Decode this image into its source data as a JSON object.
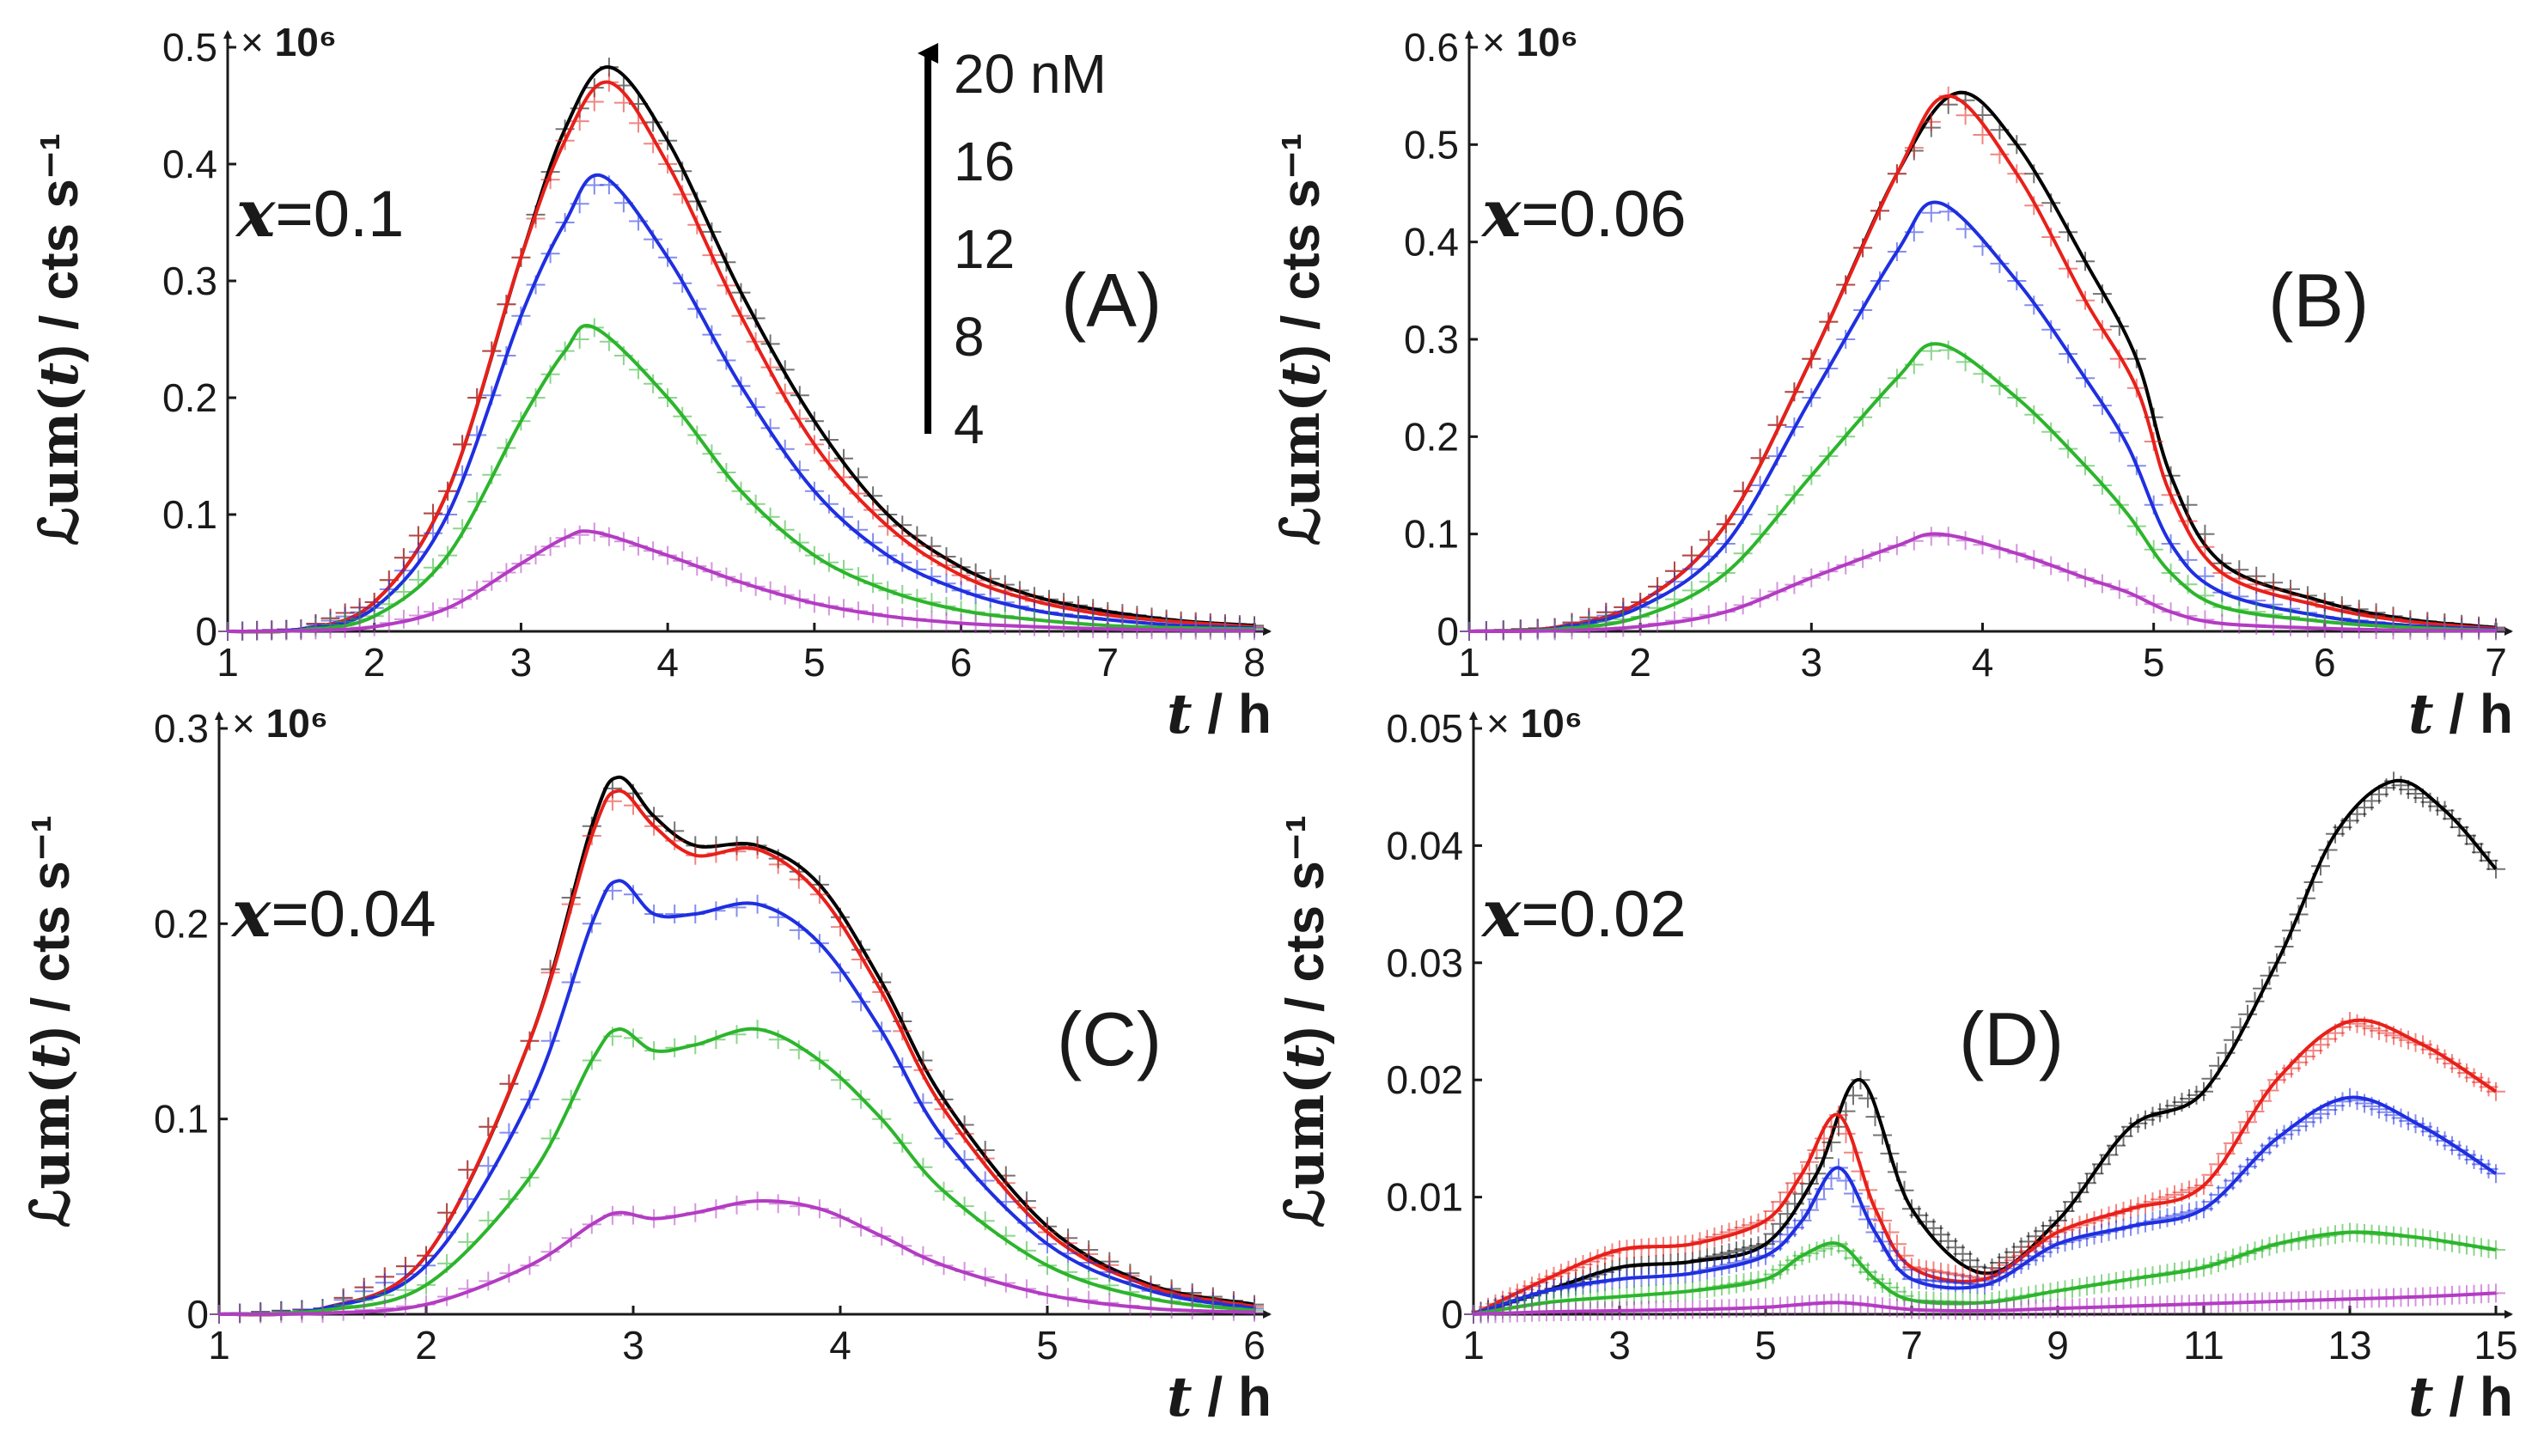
{
  "figure": {
    "colors": {
      "20 nM": "#000000",
      "16": "#e8201a",
      "12": "#1f2fe0",
      "8": "#2cb52c",
      "4": "#b33cc2"
    },
    "legend": {
      "labels": [
        "20 nM",
        "16",
        "12",
        "8",
        "4"
      ],
      "arrow": "increasing concentration"
    },
    "ylabel": {
      "prefix": "ℒum(",
      "var": "t",
      "suffix": ") / cts s⁻¹"
    },
    "xlabel": {
      "var": "t",
      "suffix": " / h"
    },
    "scale_label": {
      "prefix": "× ",
      "exp": "10⁶"
    }
  },
  "chart_data": [
    {
      "type": "line",
      "panel_letter": "(A)",
      "param_var": "x",
      "param_text": "=0.1",
      "xlim": [
        1,
        8
      ],
      "ylim": [
        0,
        0.5
      ],
      "xticks": [
        "1",
        "2",
        "3",
        "4",
        "5",
        "6",
        "7",
        "8"
      ],
      "yticks": [
        "0",
        "0.1",
        "0.2",
        "0.3",
        "0.4",
        "0.5"
      ],
      "series": [
        {
          "name": "20 nM",
          "color": "#000000",
          "x": [
            1,
            1.5,
            2,
            2.5,
            3,
            3.3,
            3.6,
            4,
            4.5,
            5,
            5.5,
            6,
            6.5,
            7,
            7.5,
            8
          ],
          "y": [
            0,
            0.002,
            0.025,
            0.12,
            0.32,
            0.43,
            0.483,
            0.42,
            0.29,
            0.18,
            0.1,
            0.055,
            0.03,
            0.017,
            0.009,
            0.005
          ]
        },
        {
          "name": "16",
          "color": "#e8201a",
          "x": [
            1,
            1.5,
            2,
            2.5,
            3,
            3.3,
            3.6,
            4,
            4.5,
            5,
            5.5,
            6,
            6.5,
            7,
            7.5,
            8
          ],
          "y": [
            0,
            0.002,
            0.025,
            0.12,
            0.32,
            0.42,
            0.47,
            0.4,
            0.27,
            0.16,
            0.09,
            0.048,
            0.026,
            0.014,
            0.008,
            0.004
          ]
        },
        {
          "name": "12",
          "color": "#1f2fe0",
          "x": [
            1,
            1.5,
            2,
            2.5,
            3,
            3.3,
            3.55,
            4,
            4.5,
            5,
            5.5,
            6,
            6.5,
            7,
            7.5,
            8
          ],
          "y": [
            0,
            0.002,
            0.02,
            0.1,
            0.27,
            0.35,
            0.39,
            0.32,
            0.21,
            0.12,
            0.065,
            0.035,
            0.018,
            0.01,
            0.005,
            0.003
          ]
        },
        {
          "name": "8",
          "color": "#2cb52c",
          "x": [
            1,
            1.5,
            2,
            2.5,
            3,
            3.3,
            3.5,
            4,
            4.5,
            5,
            5.5,
            6,
            6.5,
            7,
            7.5,
            8
          ],
          "y": [
            0,
            0.001,
            0.013,
            0.065,
            0.18,
            0.24,
            0.26,
            0.2,
            0.12,
            0.065,
            0.035,
            0.018,
            0.01,
            0.005,
            0.003,
            0.002
          ]
        },
        {
          "name": "4",
          "color": "#b33cc2",
          "x": [
            1,
            1.5,
            2,
            2.5,
            3,
            3.3,
            3.5,
            4,
            4.5,
            5,
            5.5,
            6,
            6.5,
            7,
            7.5,
            8
          ],
          "y": [
            0,
            0.0005,
            0.004,
            0.02,
            0.058,
            0.08,
            0.085,
            0.065,
            0.042,
            0.024,
            0.013,
            0.007,
            0.004,
            0.002,
            0.001,
            0.0005
          ]
        }
      ]
    },
    {
      "type": "line",
      "panel_letter": "(B)",
      "param_var": "x",
      "param_text": "=0.06",
      "xlim": [
        1,
        7
      ],
      "ylim": [
        0,
        0.6
      ],
      "xticks": [
        "1",
        "2",
        "3",
        "4",
        "5",
        "6",
        "7"
      ],
      "yticks": [
        "0",
        "0.1",
        "0.2",
        "0.3",
        "0.4",
        "0.5",
        "0.6"
      ],
      "series": [
        {
          "name": "20 nM",
          "color": "#000000",
          "x": [
            1,
            1.5,
            2,
            2.5,
            3,
            3.5,
            3.85,
            4.2,
            4.6,
            4.9,
            5.1,
            5.4,
            6,
            6.5,
            7
          ],
          "y": [
            0,
            0.004,
            0.03,
            0.11,
            0.28,
            0.47,
            0.553,
            0.5,
            0.38,
            0.28,
            0.16,
            0.07,
            0.03,
            0.012,
            0.004
          ]
        },
        {
          "name": "16",
          "color": "#e8201a",
          "x": [
            1,
            1.5,
            2,
            2.5,
            3,
            3.5,
            3.8,
            4.2,
            4.6,
            4.9,
            5.1,
            5.4,
            6,
            6.5,
            7
          ],
          "y": [
            0,
            0.004,
            0.03,
            0.11,
            0.28,
            0.47,
            0.55,
            0.47,
            0.34,
            0.25,
            0.14,
            0.06,
            0.025,
            0.01,
            0.003
          ]
        },
        {
          "name": "12",
          "color": "#1f2fe0",
          "x": [
            1,
            1.5,
            2,
            2.5,
            3,
            3.5,
            3.75,
            4.2,
            4.6,
            4.85,
            5.1,
            5.4,
            6,
            6.5,
            7
          ],
          "y": [
            0,
            0.003,
            0.025,
            0.09,
            0.24,
            0.39,
            0.44,
            0.36,
            0.26,
            0.19,
            0.09,
            0.04,
            0.015,
            0.006,
            0.002
          ]
        },
        {
          "name": "8",
          "color": "#2cb52c",
          "x": [
            1,
            1.5,
            2,
            2.5,
            3,
            3.5,
            3.75,
            4.2,
            4.6,
            4.85,
            5.1,
            5.4,
            6,
            6.5,
            7
          ],
          "y": [
            0,
            0.002,
            0.015,
            0.06,
            0.16,
            0.26,
            0.295,
            0.24,
            0.17,
            0.12,
            0.06,
            0.025,
            0.01,
            0.004,
            0.001
          ]
        },
        {
          "name": "4",
          "color": "#b33cc2",
          "x": [
            1,
            1.5,
            2,
            2.5,
            3,
            3.5,
            3.75,
            4.2,
            4.6,
            4.85,
            5.1,
            5.4,
            6,
            6.5,
            7
          ],
          "y": [
            0,
            0.0005,
            0.005,
            0.02,
            0.055,
            0.088,
            0.1,
            0.08,
            0.055,
            0.04,
            0.02,
            0.008,
            0.003,
            0.001,
            0.0005
          ]
        }
      ]
    },
    {
      "type": "line",
      "panel_letter": "(C)",
      "param_var": "x",
      "param_text": "=0.04",
      "xlim": [
        1,
        6
      ],
      "ylim": [
        0,
        0.3
      ],
      "xticks": [
        "1",
        "2",
        "3",
        "4",
        "5",
        "6"
      ],
      "yticks": [
        "0",
        "0.1",
        "0.2",
        "0.3"
      ],
      "series": [
        {
          "name": "20 nM",
          "color": "#000000",
          "x": [
            1,
            1.5,
            2,
            2.5,
            2.8,
            2.93,
            3.1,
            3.3,
            3.6,
            3.9,
            4.2,
            4.5,
            5,
            5.5,
            6
          ],
          "y": [
            0,
            0.003,
            0.03,
            0.14,
            0.25,
            0.275,
            0.255,
            0.24,
            0.24,
            0.22,
            0.17,
            0.11,
            0.045,
            0.015,
            0.005
          ]
        },
        {
          "name": "16",
          "color": "#e8201a",
          "x": [
            1,
            1.5,
            2,
            2.5,
            2.8,
            2.93,
            3.1,
            3.3,
            3.6,
            3.9,
            4.2,
            4.5,
            5,
            5.5,
            6
          ],
          "y": [
            0,
            0.003,
            0.03,
            0.14,
            0.245,
            0.268,
            0.25,
            0.235,
            0.238,
            0.215,
            0.165,
            0.105,
            0.042,
            0.014,
            0.004
          ]
        },
        {
          "name": "12",
          "color": "#1f2fe0",
          "x": [
            1,
            1.5,
            2,
            2.5,
            2.8,
            2.93,
            3.1,
            3.3,
            3.6,
            3.9,
            4.2,
            4.5,
            5,
            5.5,
            6
          ],
          "y": [
            0,
            0.003,
            0.025,
            0.11,
            0.2,
            0.222,
            0.205,
            0.205,
            0.21,
            0.19,
            0.145,
            0.09,
            0.036,
            0.012,
            0.003
          ]
        },
        {
          "name": "8",
          "color": "#2cb52c",
          "x": [
            1,
            1.5,
            2,
            2.5,
            2.8,
            2.93,
            3.1,
            3.3,
            3.6,
            3.9,
            4.2,
            4.5,
            5,
            5.5,
            6
          ],
          "y": [
            0,
            0.002,
            0.015,
            0.07,
            0.13,
            0.146,
            0.135,
            0.138,
            0.146,
            0.13,
            0.1,
            0.063,
            0.025,
            0.008,
            0.002
          ]
        },
        {
          "name": "4",
          "color": "#b33cc2",
          "x": [
            1,
            1.5,
            2,
            2.5,
            2.8,
            2.93,
            3.1,
            3.3,
            3.6,
            3.9,
            4.2,
            4.5,
            5,
            5.5,
            6
          ],
          "y": [
            0,
            0.0005,
            0.005,
            0.025,
            0.046,
            0.052,
            0.049,
            0.052,
            0.058,
            0.054,
            0.04,
            0.025,
            0.01,
            0.003,
            0.001
          ]
        }
      ]
    },
    {
      "type": "line",
      "panel_letter": "(D)",
      "param_var": "x",
      "param_text": "=0.02",
      "xlim": [
        1,
        15
      ],
      "ylim": [
        0,
        0.05
      ],
      "xticks": [
        "1",
        "3",
        "5",
        "7",
        "9",
        "11",
        "13",
        "15"
      ],
      "yticks": [
        "0",
        "0.01",
        "0.02",
        "0.03",
        "0.04",
        "0.05"
      ],
      "series": [
        {
          "name": "20 nM",
          "color": "#000000",
          "x": [
            1,
            2,
            3,
            4,
            5,
            5.7,
            6.3,
            7,
            8,
            9,
            10,
            11,
            12,
            12.8,
            13.6,
            14.3,
            15
          ],
          "y": [
            0,
            0.002,
            0.004,
            0.0045,
            0.006,
            0.012,
            0.02,
            0.009,
            0.0035,
            0.008,
            0.016,
            0.019,
            0.03,
            0.041,
            0.0455,
            0.043,
            0.038
          ]
        },
        {
          "name": "16",
          "color": "#e8201a",
          "x": [
            1,
            2,
            3,
            4,
            5,
            5.5,
            6,
            6.5,
            7,
            8,
            9,
            10,
            11,
            12,
            13,
            14,
            15
          ],
          "y": [
            0,
            0.003,
            0.0055,
            0.006,
            0.008,
            0.012,
            0.017,
            0.009,
            0.004,
            0.003,
            0.007,
            0.009,
            0.011,
            0.02,
            0.025,
            0.023,
            0.019
          ]
        },
        {
          "name": "12",
          "color": "#1f2fe0",
          "x": [
            1,
            2,
            3,
            4,
            5,
            5.5,
            6,
            6.5,
            7,
            8,
            9,
            10,
            11,
            12,
            13,
            14,
            15
          ],
          "y": [
            0,
            0.002,
            0.003,
            0.0035,
            0.005,
            0.008,
            0.0125,
            0.007,
            0.003,
            0.0025,
            0.006,
            0.0075,
            0.009,
            0.015,
            0.0185,
            0.016,
            0.012
          ]
        },
        {
          "name": "8",
          "color": "#2cb52c",
          "x": [
            1,
            2,
            3,
            4,
            5,
            5.5,
            6,
            6.5,
            7,
            8,
            9,
            10,
            11,
            12,
            13,
            14,
            15
          ],
          "y": [
            0,
            0.001,
            0.0015,
            0.002,
            0.003,
            0.005,
            0.006,
            0.003,
            0.0012,
            0.001,
            0.002,
            0.003,
            0.004,
            0.006,
            0.007,
            0.0065,
            0.0055
          ]
        },
        {
          "name": "4",
          "color": "#b33cc2",
          "x": [
            1,
            2,
            3,
            4,
            5,
            6,
            7,
            8,
            9,
            10,
            11,
            12,
            13,
            14,
            15
          ],
          "y": [
            0,
            0.0002,
            0.0003,
            0.0004,
            0.0006,
            0.001,
            0.0004,
            0.0003,
            0.0005,
            0.0007,
            0.0009,
            0.0011,
            0.0013,
            0.0015,
            0.0018
          ]
        }
      ]
    }
  ]
}
